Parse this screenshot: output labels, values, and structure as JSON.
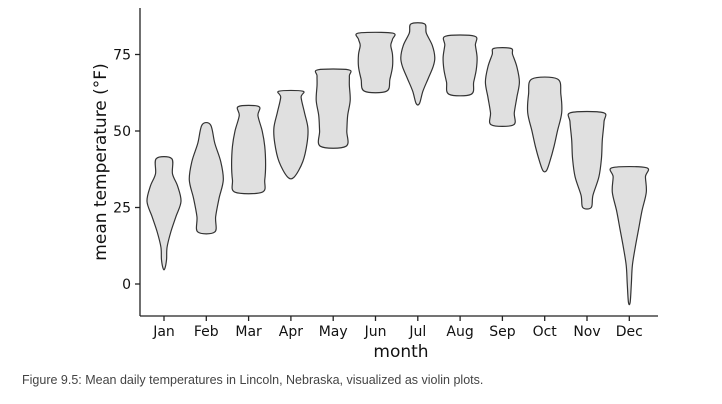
{
  "caption": "Figure 9.5: Mean daily temperatures in Lincoln, Nebraska, visualized as violin plots.",
  "chart_data": {
    "type": "violin",
    "title": "",
    "xlabel": "month",
    "ylabel": "mean temperature (°F)",
    "ylim": [
      -10,
      90
    ],
    "yticks": [
      0,
      25,
      50,
      75
    ],
    "grid": false,
    "colors": {
      "fill": "#e0e0e0",
      "stroke": "#333333"
    },
    "categories": [
      "Jan",
      "Feb",
      "Mar",
      "Apr",
      "May",
      "Jun",
      "Jul",
      "Aug",
      "Sep",
      "Oct",
      "Nov",
      "Dec"
    ],
    "violins": [
      {
        "month": "Jan",
        "profile": [
          [
            5,
            0
          ],
          [
            8,
            0.15
          ],
          [
            12,
            0.18
          ],
          [
            17,
            0.4
          ],
          [
            22,
            0.7
          ],
          [
            27,
            1.0
          ],
          [
            32,
            0.8
          ],
          [
            36,
            0.5
          ],
          [
            41,
            0.45
          ]
        ]
      },
      {
        "month": "Feb",
        "profile": [
          [
            17,
            0.5
          ],
          [
            22,
            0.55
          ],
          [
            28,
            0.75
          ],
          [
            34,
            1.0
          ],
          [
            40,
            0.85
          ],
          [
            46,
            0.5
          ],
          [
            52,
            0.25
          ]
        ]
      },
      {
        "month": "Mar",
        "profile": [
          [
            30,
            0.8
          ],
          [
            34,
            0.95
          ],
          [
            39,
            1.0
          ],
          [
            45,
            0.95
          ],
          [
            50,
            0.8
          ],
          [
            55,
            0.55
          ],
          [
            58,
            0.6
          ]
        ]
      },
      {
        "month": "Apr",
        "profile": [
          [
            35,
            0.2
          ],
          [
            40,
            0.7
          ],
          [
            46,
            0.95
          ],
          [
            51,
            1.0
          ],
          [
            56,
            0.8
          ],
          [
            61,
            0.6
          ],
          [
            63,
            0.7
          ]
        ]
      },
      {
        "month": "May",
        "profile": [
          [
            45,
            0.75
          ],
          [
            50,
            0.8
          ],
          [
            55,
            0.85
          ],
          [
            60,
            1.0
          ],
          [
            65,
            0.95
          ],
          [
            68,
            0.95
          ],
          [
            70,
            0.9
          ]
        ]
      },
      {
        "month": "Jun",
        "profile": [
          [
            63,
            0.65
          ],
          [
            67,
            0.85
          ],
          [
            71,
            1.0
          ],
          [
            75,
            1.0
          ],
          [
            78,
            0.9
          ],
          [
            80,
            1.0
          ],
          [
            82,
            1.0
          ]
        ]
      },
      {
        "month": "Jul",
        "profile": [
          [
            59,
            0.1
          ],
          [
            63,
            0.3
          ],
          [
            67,
            0.6
          ],
          [
            71,
            0.9
          ],
          [
            74,
            1.0
          ],
          [
            78,
            0.85
          ],
          [
            82,
            0.5
          ],
          [
            85,
            0.4
          ]
        ]
      },
      {
        "month": "Aug",
        "profile": [
          [
            62,
            0.65
          ],
          [
            66,
            0.8
          ],
          [
            70,
            0.95
          ],
          [
            74,
            1.0
          ],
          [
            78,
            0.9
          ],
          [
            81,
            0.85
          ]
        ]
      },
      {
        "month": "Sep",
        "profile": [
          [
            52,
            0.65
          ],
          [
            56,
            0.7
          ],
          [
            61,
            0.85
          ],
          [
            66,
            1.0
          ],
          [
            71,
            0.85
          ],
          [
            75,
            0.6
          ],
          [
            77,
            0.5
          ]
        ]
      },
      {
        "month": "Oct",
        "profile": [
          [
            37,
            0.1
          ],
          [
            40,
            0.3
          ],
          [
            45,
            0.55
          ],
          [
            50,
            0.75
          ],
          [
            56,
            1.0
          ],
          [
            62,
            0.95
          ],
          [
            67,
            0.75
          ]
        ]
      },
      {
        "month": "Nov",
        "profile": [
          [
            25,
            0.25
          ],
          [
            29,
            0.35
          ],
          [
            35,
            0.7
          ],
          [
            41,
            0.85
          ],
          [
            47,
            0.9
          ],
          [
            53,
            1.0
          ],
          [
            56,
            0.95
          ]
        ]
      },
      {
        "month": "Dec",
        "profile": [
          [
            -6,
            0.05
          ],
          [
            0,
            0.12
          ],
          [
            6,
            0.18
          ],
          [
            12,
            0.35
          ],
          [
            18,
            0.55
          ],
          [
            24,
            0.75
          ],
          [
            30,
            1.0
          ],
          [
            35,
            0.95
          ],
          [
            38,
            1.0
          ]
        ]
      }
    ]
  }
}
